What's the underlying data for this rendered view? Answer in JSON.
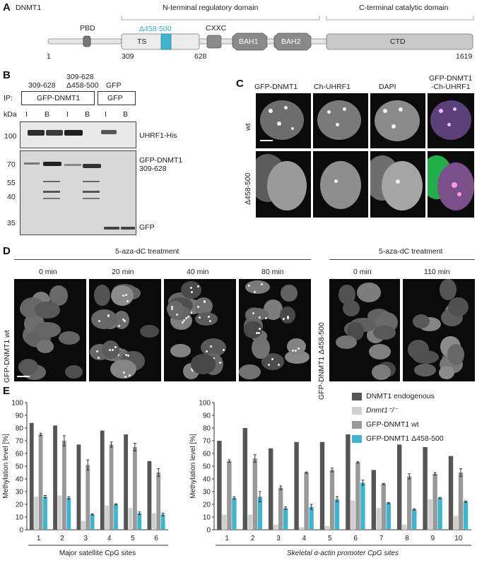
{
  "panelA": {
    "letter": "A",
    "protein": "DNMT1",
    "n_domain": "N-terminal regulatory domain",
    "c_domain": "C-terminal catalytic domain",
    "domains": {
      "pbd": "PBD",
      "ts": "TS",
      "deletion": "Δ458-500",
      "cxxc": "CXXC",
      "bah1": "BAH1",
      "bah2": "BAH2",
      "ctd": "CTD"
    },
    "positions": {
      "p1": "1",
      "p309": "309",
      "p628": "628",
      "p1619": "1619"
    }
  },
  "panelB": {
    "letter": "B",
    "construct_wt": "309-628",
    "construct_del_line1": "309-628",
    "construct_del_line2": "Δ458-500",
    "construct_gfp": "GFP",
    "ip_label": "IP:",
    "ip_gfp_dnmt1": "GFP-DNMT1",
    "ip_gfp": "GFP",
    "kda": "kDa",
    "lanes": [
      "I",
      "B",
      "I",
      "B",
      "I",
      "B"
    ],
    "upper_marker": "100",
    "lower_markers": [
      "70",
      "55",
      "40",
      "35"
    ],
    "band_uhrf1": "UHRF1-His",
    "band_gfp_dnmt1_line1": "GFP-DNMT1",
    "band_gfp_dnmt1_line2": "309-628",
    "band_gfp": "GFP"
  },
  "panelC": {
    "letter": "C",
    "col1": "GFP-DNMT1",
    "col2": "Ch-UHRF1",
    "col3": "DAPI",
    "col4_line1": "GFP-DNMT1",
    "col4_line2": "-Ch-UHRF1",
    "row1": "wt",
    "row2": "Δ458-500"
  },
  "panelD": {
    "letter": "D",
    "treatment_left": "5-aza-dC treatment",
    "treatment_right": "5-aza-dC treatment",
    "times_left": [
      "0 min",
      "20 min",
      "40 min",
      "80 min"
    ],
    "times_right": [
      "0 min",
      "110 min"
    ],
    "row_left": "GFP-DNMT1 wt",
    "row_right": "GFP-DNMT1 Δ458-500"
  },
  "panelE": {
    "letter": "E",
    "legend": [
      "DNMT1 endogenous",
      "Dnmt1⁻/⁻",
      "GFP-DNMT1 wt",
      "GFP-DNMT1 Δ458-500"
    ]
  },
  "colors": {
    "endogenous": "#555555",
    "knockout": "#cfcfcf",
    "wt": "#999999",
    "deletion": "#3fb4d1",
    "cyan_label": "#35a9c9"
  },
  "chart_data": [
    {
      "type": "bar",
      "ylabel": "Methylation level [%]",
      "xlabel": "Major satellite CpG sites",
      "ylim": [
        0,
        100
      ],
      "yticks": [
        0,
        10,
        20,
        30,
        40,
        50,
        60,
        70,
        80,
        90,
        100
      ],
      "categories": [
        "1",
        "2",
        "3",
        "4",
        "5",
        "6"
      ],
      "series": [
        {
          "name": "DNMT1 endogenous",
          "values": [
            84,
            82,
            67,
            78,
            75,
            54
          ]
        },
        {
          "name": "Dnmt1⁻/⁻",
          "values": [
            26,
            27,
            7,
            19,
            17,
            13
          ]
        },
        {
          "name": "GFP-DNMT1 wt",
          "values": [
            75,
            70,
            51,
            67,
            65,
            45
          ]
        },
        {
          "name": "GFP-DNMT1 Δ458-500",
          "values": [
            26,
            25,
            12,
            20,
            13,
            12
          ]
        }
      ],
      "error_bars": [
        [
          0,
          0,
          0,
          0,
          0,
          0
        ],
        [
          0,
          0,
          0,
          0,
          0,
          0
        ],
        [
          1,
          4,
          4,
          2,
          3,
          3
        ],
        [
          1,
          1,
          0.5,
          0.5,
          1,
          1
        ]
      ]
    },
    {
      "type": "bar",
      "ylabel": "Methylation level [%]",
      "xlabel": "Skeletal α-actin promoter CpG sites",
      "ylim": [
        0,
        100
      ],
      "yticks": [
        0,
        10,
        20,
        30,
        40,
        50,
        60,
        70,
        80,
        90,
        100
      ],
      "categories": [
        "1",
        "2",
        "3",
        "4",
        "5",
        "6",
        "7",
        "8",
        "9",
        "10"
      ],
      "series": [
        {
          "name": "DNMT1 endogenous",
          "values": [
            70,
            80,
            64,
            69,
            69,
            75,
            47,
            67,
            65,
            58
          ]
        },
        {
          "name": "Dnmt1⁻/⁻",
          "values": [
            12,
            12,
            4,
            2,
            3,
            23,
            17,
            4,
            24,
            11
          ]
        },
        {
          "name": "GFP-DNMT1 wt",
          "values": [
            54,
            56,
            33,
            45,
            47,
            53,
            36,
            42,
            44,
            45
          ]
        },
        {
          "name": "GFP-DNMT1 Δ458-500",
          "values": [
            25,
            26,
            17,
            18,
            24,
            37,
            21,
            16,
            25,
            22
          ]
        }
      ],
      "error_bars": [
        [
          0,
          0,
          0,
          0,
          0,
          0,
          0,
          0,
          0,
          0
        ],
        [
          0,
          0,
          0,
          0,
          0,
          0,
          0,
          0,
          0,
          0
        ],
        [
          1,
          3,
          1.5,
          0.5,
          1.5,
          0.5,
          0.5,
          2,
          1,
          3
        ],
        [
          1,
          4,
          1,
          2,
          2,
          2,
          0.5,
          0.5,
          0.5,
          0.5
        ]
      ]
    }
  ]
}
